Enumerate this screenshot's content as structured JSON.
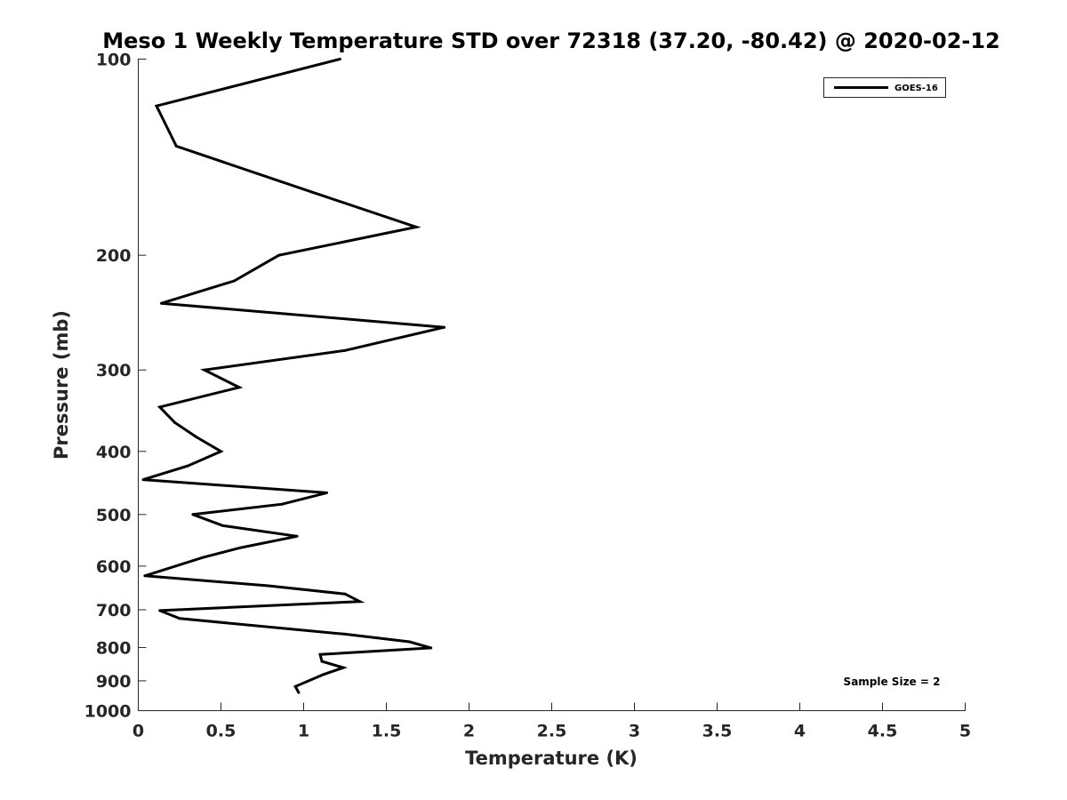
{
  "chart_data": {
    "type": "line",
    "title": "Meso 1 Weekly Temperature STD over 72318 (37.20, -80.42) @ 2020-02-12",
    "xlabel": "Temperature (K)",
    "ylabel": "Pressure (mb)",
    "xlim": [
      0,
      5
    ],
    "ylim": [
      100,
      1000
    ],
    "yscale": "log",
    "yreversed": true,
    "grid": false,
    "legend_position": "top-right",
    "x_ticks": [
      "0",
      "0.5",
      "1",
      "1.5",
      "2",
      "2.5",
      "3",
      "3.5",
      "4",
      "4.5",
      "5"
    ],
    "x_tick_values": [
      0,
      0.5,
      1,
      1.5,
      2,
      2.5,
      3,
      3.5,
      4,
      4.5,
      5
    ],
    "y_ticks": [
      "100",
      "200",
      "300",
      "400",
      "500",
      "600",
      "700",
      "800",
      "900",
      "1000"
    ],
    "y_tick_values": [
      100,
      200,
      300,
      400,
      500,
      600,
      700,
      800,
      900,
      1000
    ],
    "series": [
      {
        "name": "GOES-16",
        "color": "#000000",
        "points": [
          [
            1.22,
            100
          ],
          [
            0.11,
            118
          ],
          [
            0.23,
            136
          ],
          [
            1.05,
            160
          ],
          [
            1.68,
            181
          ],
          [
            0.85,
            200
          ],
          [
            0.58,
            219
          ],
          [
            0.14,
            237
          ],
          [
            1.85,
            258
          ],
          [
            1.25,
            280
          ],
          [
            0.4,
            300
          ],
          [
            0.61,
            319
          ],
          [
            0.13,
            342
          ],
          [
            0.22,
            361
          ],
          [
            0.35,
            380
          ],
          [
            0.5,
            400
          ],
          [
            0.3,
            421
          ],
          [
            0.03,
            442
          ],
          [
            1.14,
            463
          ],
          [
            0.87,
            482
          ],
          [
            0.33,
            500
          ],
          [
            0.51,
            520
          ],
          [
            0.96,
            540
          ],
          [
            0.62,
            562
          ],
          [
            0.39,
            582
          ],
          [
            0.04,
            621
          ],
          [
            0.78,
            643
          ],
          [
            1.25,
            662
          ],
          [
            1.34,
            680
          ],
          [
            0.13,
            702
          ],
          [
            0.25,
            722
          ],
          [
            1.25,
            763
          ],
          [
            1.64,
            784
          ],
          [
            1.77,
            801
          ],
          [
            1.1,
            820
          ],
          [
            1.11,
            840
          ],
          [
            1.24,
            859
          ],
          [
            1.12,
            880
          ],
          [
            0.95,
            918
          ],
          [
            0.97,
            938
          ]
        ]
      }
    ],
    "annotation": "Sample Size = 2"
  }
}
